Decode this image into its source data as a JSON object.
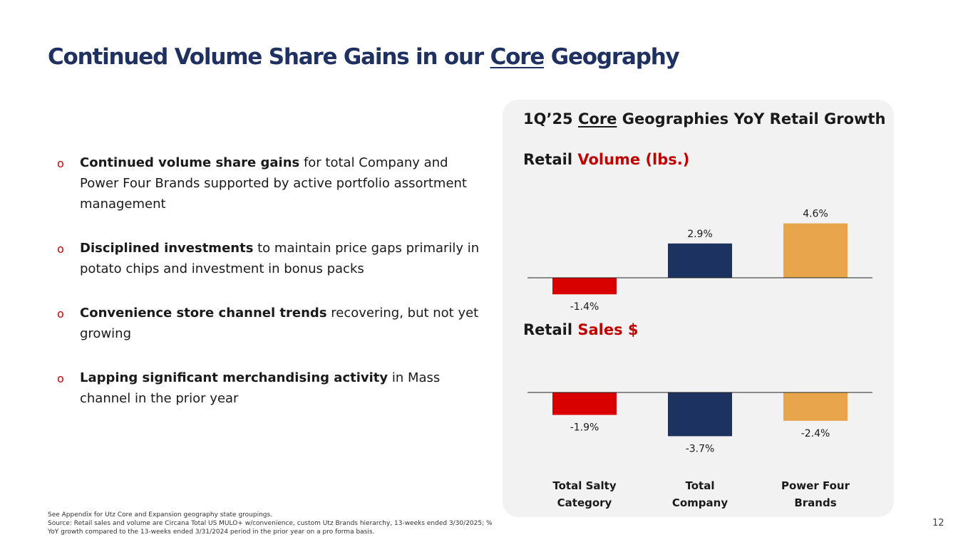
{
  "title": {
    "before": "Continued Volume Share Gains in our ",
    "underlined": "Core",
    "after": " Geography"
  },
  "bullets": [
    {
      "bold": "Continued volume share gains",
      "rest": " for total Company and Power Four Brands supported by active portfolio assortment management"
    },
    {
      "bold": "Disciplined investments",
      "rest": " to maintain price gaps primarily in potato chips and investment in bonus packs"
    },
    {
      "bold": "Convenience store channel trends",
      "rest": " recovering, but not yet growing"
    },
    {
      "bold": "Lapping significant merchandising activity",
      "rest": " in Mass channel in the prior year"
    }
  ],
  "bullet_marker": "o",
  "panel": {
    "title_before": "1Q’25 ",
    "title_underlined": "Core",
    "title_after": " Geographies YoY Retail Growth",
    "volume_label": "Retail ",
    "volume_accent": "Volume (lbs.)",
    "sales_label": "Retail ",
    "sales_accent": "Sales $"
  },
  "chart_data": [
    {
      "type": "bar",
      "title": "Retail Volume (lbs.)",
      "categories": [
        "Total Salty Category",
        "Total Company",
        "Power Four Brands"
      ],
      "values": [
        -1.4,
        2.9,
        4.6
      ],
      "labels": [
        "-1.4%",
        "2.9%",
        "4.6%"
      ],
      "colors": [
        "#d90000",
        "#1c3260",
        "#e8a54b"
      ]
    },
    {
      "type": "bar",
      "title": "Retail Sales $",
      "categories": [
        "Total Salty Category",
        "Total Company",
        "Power Four Brands"
      ],
      "values": [
        -1.9,
        -3.7,
        -2.4
      ],
      "labels": [
        "-1.9%",
        "-3.7%",
        "-2.4%"
      ],
      "colors": [
        "#d90000",
        "#1c3260",
        "#e8a54b"
      ]
    }
  ],
  "category_labels": [
    [
      "Total Salty",
      "Category"
    ],
    [
      "Total",
      "Company"
    ],
    [
      "Power Four",
      "Brands"
    ]
  ],
  "footnote": {
    "line1": "See Appendix for Utz Core and Expansion geography state groupings.",
    "line2": "Source: Retail sales and volume are Circana Total US MULO+ w/convenience, custom Utz Brands hierarchy, 13-weeks ended 3/30/2025; % YoY growth compared to the 13-weeks ended 3/31/2024 period in the prior year on a pro forma basis."
  },
  "page_number": "12",
  "colors": {
    "title": "#1f3160",
    "accent": "#c00000",
    "panel_bg": "#f2f2f2"
  }
}
